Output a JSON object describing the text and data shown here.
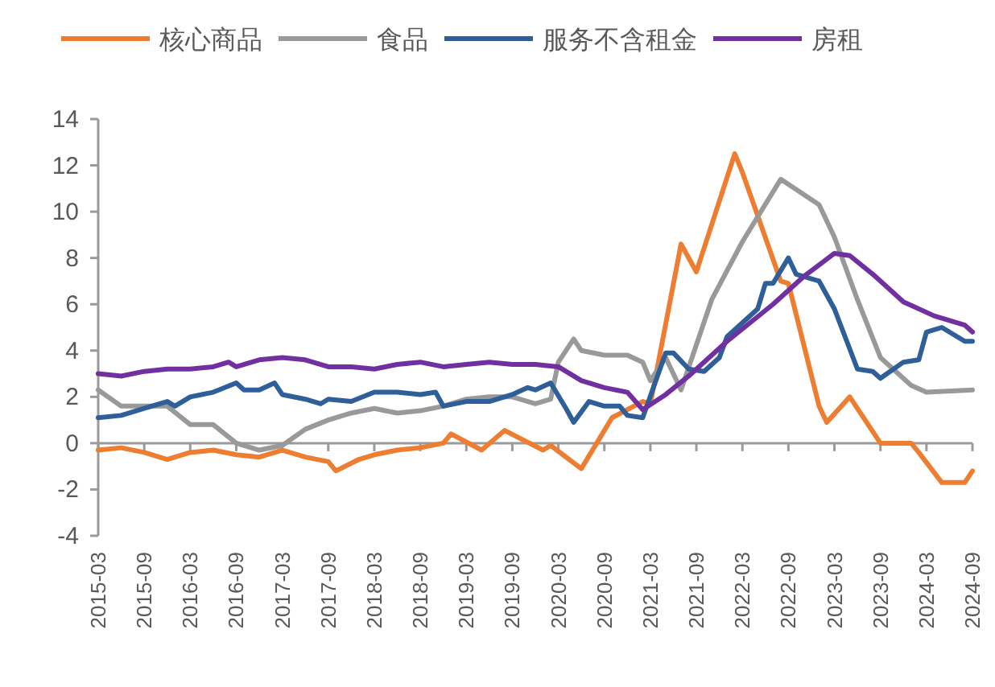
{
  "chart_data": {
    "type": "line",
    "legend": "top",
    "line_style": "solid",
    "marker": "none",
    "xlim": [
      "2015-03",
      "2024-09"
    ],
    "xticks": [
      "2015-03",
      "2015-09",
      "2016-03",
      "2016-09",
      "2017-03",
      "2017-09",
      "2018-03",
      "2018-09",
      "2019-03",
      "2019-09",
      "2020-03",
      "2020-09",
      "2021-03",
      "2021-09",
      "2022-03",
      "2022-09",
      "2023-03",
      "2023-09",
      "2024-03",
      "2024-09"
    ],
    "ylim": [
      -4,
      14
    ],
    "yticks": [
      -4,
      -2,
      0,
      2,
      4,
      6,
      8,
      10,
      12,
      14
    ],
    "series": [
      {
        "name": "核心商品",
        "color": "#ed7d31",
        "x": [
          "2015-03",
          "2015-06",
          "2015-09",
          "2015-12",
          "2016-03",
          "2016-06",
          "2016-09",
          "2016-12",
          "2017-03",
          "2017-06",
          "2017-09",
          "2017-10",
          "2018-01",
          "2018-03",
          "2018-06",
          "2018-09",
          "2018-12",
          "2019-01",
          "2019-05",
          "2019-08",
          "2020-01",
          "2020-02",
          "2020-06",
          "2020-08",
          "2020-10",
          "2021-02",
          "2021-03",
          "2021-07",
          "2021-09",
          "2022-02",
          "2022-03",
          "2022-08",
          "2022-09",
          "2023-01",
          "2023-02",
          "2023-05",
          "2023-09",
          "2024-01",
          "2024-02",
          "2024-05",
          "2024-08",
          "2024-09"
        ],
        "values": [
          -0.3,
          -0.2,
          -0.4,
          -0.7,
          -0.4,
          -0.3,
          -0.5,
          -0.6,
          -0.3,
          -0.6,
          -0.8,
          -1.2,
          -0.7,
          -0.5,
          -0.3,
          -0.2,
          0,
          0.4,
          -0.3,
          0.55,
          -0.3,
          -0.1,
          -1.1,
          0,
          1.1,
          1.8,
          1.7,
          8.6,
          7.4,
          12.5,
          11.7,
          7.0,
          6.9,
          1.6,
          0.9,
          2.0,
          0,
          0,
          -0.4,
          -1.7,
          -1.7,
          -1.2
        ]
      },
      {
        "name": "食品",
        "color": "#999999",
        "x": [
          "2015-03",
          "2015-06",
          "2015-09",
          "2015-12",
          "2016-03",
          "2016-06",
          "2016-09",
          "2016-12",
          "2017-03",
          "2017-06",
          "2017-09",
          "2017-12",
          "2018-03",
          "2018-06",
          "2018-09",
          "2018-12",
          "2019-03",
          "2019-06",
          "2019-09",
          "2019-12",
          "2020-02",
          "2020-03",
          "2020-05",
          "2020-06",
          "2020-09",
          "2020-12",
          "2021-02",
          "2021-03",
          "2021-05",
          "2021-07",
          "2021-11",
          "2022-03",
          "2022-08",
          "2023-01",
          "2023-03",
          "2023-06",
          "2023-09",
          "2024-01",
          "2024-03",
          "2024-09"
        ],
        "values": [
          2.3,
          1.6,
          1.6,
          1.6,
          0.8,
          0.8,
          0,
          -0.3,
          -0.1,
          0.6,
          1.0,
          1.3,
          1.5,
          1.3,
          1.4,
          1.6,
          1.9,
          2.0,
          2.0,
          1.7,
          1.9,
          3.5,
          4.5,
          4.0,
          3.8,
          3.8,
          3.5,
          2.7,
          3.7,
          2.3,
          6.2,
          8.7,
          11.4,
          10.3,
          8.9,
          6.2,
          3.7,
          2.5,
          2.2,
          2.3
        ]
      },
      {
        "name": "服务不含租金",
        "color": "#2f5f98",
        "x": [
          "2015-03",
          "2015-06",
          "2015-09",
          "2015-12",
          "2016-01",
          "2016-03",
          "2016-06",
          "2016-09",
          "2016-10",
          "2016-12",
          "2017-02",
          "2017-03",
          "2017-06",
          "2017-08",
          "2017-09",
          "2017-12",
          "2018-03",
          "2018-06",
          "2018-09",
          "2018-11",
          "2018-12",
          "2019-03",
          "2019-06",
          "2019-09",
          "2019-11",
          "2019-12",
          "2020-02",
          "2020-04",
          "2020-05",
          "2020-07",
          "2020-09",
          "2020-11",
          "2020-12",
          "2021-02",
          "2021-05",
          "2021-06",
          "2021-08",
          "2021-10",
          "2021-12",
          "2022-01",
          "2022-05",
          "2022-06",
          "2022-07",
          "2022-09",
          "2022-10",
          "2023-01",
          "2023-03",
          "2023-06",
          "2023-08",
          "2023-09",
          "2023-12",
          "2024-02",
          "2024-03",
          "2024-05",
          "2024-08",
          "2024-09"
        ],
        "values": [
          1.1,
          1.2,
          1.5,
          1.8,
          1.6,
          2.0,
          2.2,
          2.6,
          2.3,
          2.3,
          2.6,
          2.1,
          1.9,
          1.7,
          1.9,
          1.8,
          2.2,
          2.2,
          2.1,
          2.2,
          1.6,
          1.8,
          1.8,
          2.1,
          2.4,
          2.3,
          2.6,
          1.5,
          0.9,
          1.8,
          1.6,
          1.6,
          1.2,
          1.1,
          3.9,
          3.9,
          3.2,
          3.1,
          3.7,
          4.6,
          5.8,
          6.9,
          6.9,
          8.0,
          7.3,
          7.0,
          5.8,
          3.2,
          3.1,
          2.8,
          3.5,
          3.6,
          4.8,
          5.0,
          4.4,
          4.4
        ]
      },
      {
        "name": "房租",
        "color": "#7030a0",
        "x": [
          "2015-03",
          "2015-06",
          "2015-09",
          "2015-12",
          "2016-03",
          "2016-06",
          "2016-08",
          "2016-09",
          "2016-12",
          "2017-03",
          "2017-06",
          "2017-09",
          "2017-12",
          "2018-03",
          "2018-06",
          "2018-09",
          "2018-12",
          "2019-03",
          "2019-06",
          "2019-09",
          "2019-12",
          "2020-03",
          "2020-06",
          "2020-09",
          "2020-12",
          "2021-02",
          "2021-05",
          "2021-08",
          "2022-01",
          "2022-07",
          "2022-11",
          "2023-03",
          "2023-05",
          "2023-08",
          "2023-12",
          "2024-04",
          "2024-08",
          "2024-09"
        ],
        "values": [
          3.0,
          2.9,
          3.1,
          3.2,
          3.2,
          3.3,
          3.5,
          3.3,
          3.6,
          3.7,
          3.6,
          3.3,
          3.3,
          3.2,
          3.4,
          3.5,
          3.3,
          3.4,
          3.5,
          3.4,
          3.4,
          3.3,
          2.7,
          2.4,
          2.2,
          1.45,
          2.1,
          2.9,
          4.4,
          6.0,
          7.2,
          8.2,
          8.1,
          7.3,
          6.1,
          5.5,
          5.1,
          4.8
        ]
      }
    ]
  }
}
